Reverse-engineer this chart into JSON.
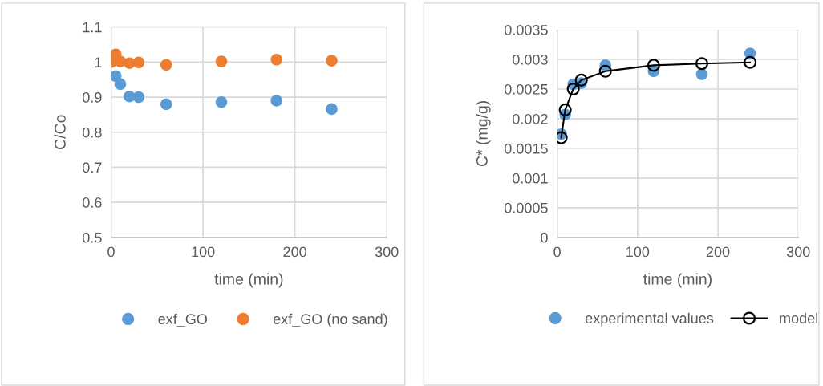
{
  "chart_data": [
    {
      "type": "scatter",
      "xlabel": "time (min)",
      "ylabel": "C/Co",
      "xlim": [
        0,
        300
      ],
      "xticks": [
        0,
        100,
        200,
        300
      ],
      "ylim": [
        0.5,
        1.1
      ],
      "yticks": [
        0.5,
        0.6,
        0.7,
        0.8,
        0.9,
        1,
        1.1
      ],
      "grid": true,
      "legend": "bottom",
      "marker": "circle",
      "series": [
        {
          "name": "exf_GO",
          "color": "#5b9bd5",
          "x": [
            5,
            10,
            20,
            30,
            60,
            120,
            180,
            240
          ],
          "values": [
            0.96,
            0.937,
            0.902,
            0.9,
            0.88,
            0.886,
            0.89,
            0.866
          ]
        },
        {
          "name": "exf_GO (no sand)",
          "color": "#ed7d31",
          "x": [
            0,
            5,
            10,
            20,
            30,
            60,
            120,
            180,
            240
          ],
          "values": [
            1.0,
            1.022,
            1.002,
            0.997,
            0.999,
            0.992,
            1.002,
            1.007,
            1.004
          ]
        }
      ]
    },
    {
      "type": "scatter",
      "xlabel": "time (min)",
      "ylabel": "C* (mg/g)",
      "xlim": [
        0,
        300
      ],
      "xticks": [
        0,
        100,
        200,
        300
      ],
      "ylim": [
        0,
        0.0035
      ],
      "yticks": [
        0,
        0.0005,
        0.001,
        0.0015,
        0.002,
        0.0025,
        0.003,
        0.0035
      ],
      "grid": true,
      "legend": "bottom",
      "series": [
        {
          "name": "experimental values",
          "color": "#5b9bd5",
          "marker": "circle",
          "x": [
            5,
            10,
            20,
            30,
            60,
            120,
            180,
            240
          ],
          "values": [
            0.00174,
            0.00207,
            0.00258,
            0.0026,
            0.0029,
            0.0028,
            0.00275,
            0.0031
          ]
        },
        {
          "name": "model",
          "type": "line",
          "color": "#000000",
          "marker": "circle",
          "line_style": "solid",
          "x": [
            5,
            10,
            20,
            30,
            60,
            120,
            180,
            240
          ],
          "values": [
            0.00168,
            0.00215,
            0.0025,
            0.00265,
            0.0028,
            0.0029,
            0.00293,
            0.00295
          ]
        }
      ]
    }
  ]
}
